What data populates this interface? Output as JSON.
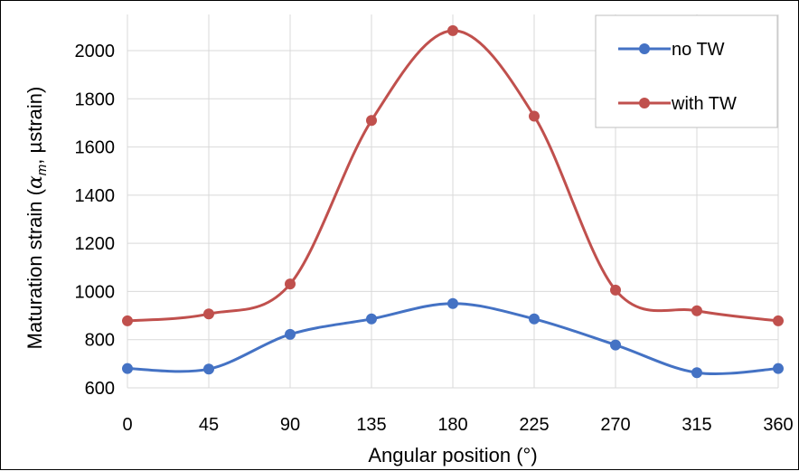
{
  "chart_data": {
    "type": "line",
    "title": "",
    "xlabel": "Angular position (°)",
    "ylabel_prefix": "Maturation strain (",
    "ylabel_symbol": "α",
    "ylabel_subscript": "m",
    "ylabel_suffix": ", µstrain)",
    "x": [
      0,
      45,
      90,
      135,
      180,
      225,
      270,
      315,
      360
    ],
    "xlim": [
      0,
      360
    ],
    "ylim": [
      600,
      2100
    ],
    "xticks": [
      "0",
      "45",
      "90",
      "135",
      "180",
      "225",
      "270",
      "315",
      "360"
    ],
    "yticks": [
      "600",
      "800",
      "1000",
      "1200",
      "1400",
      "1600",
      "1800",
      "2000"
    ],
    "grid": true,
    "legend_position": "top-right",
    "series": [
      {
        "name": "no TW",
        "color": "#4472c4",
        "values": [
          680,
          678,
          822,
          886,
          950,
          886,
          778,
          663,
          680
        ]
      },
      {
        "name": "with TW",
        "color": "#c0504d",
        "values": [
          878,
          907,
          1031,
          1710,
          2083,
          1728,
          1006,
          920,
          878
        ]
      }
    ]
  }
}
